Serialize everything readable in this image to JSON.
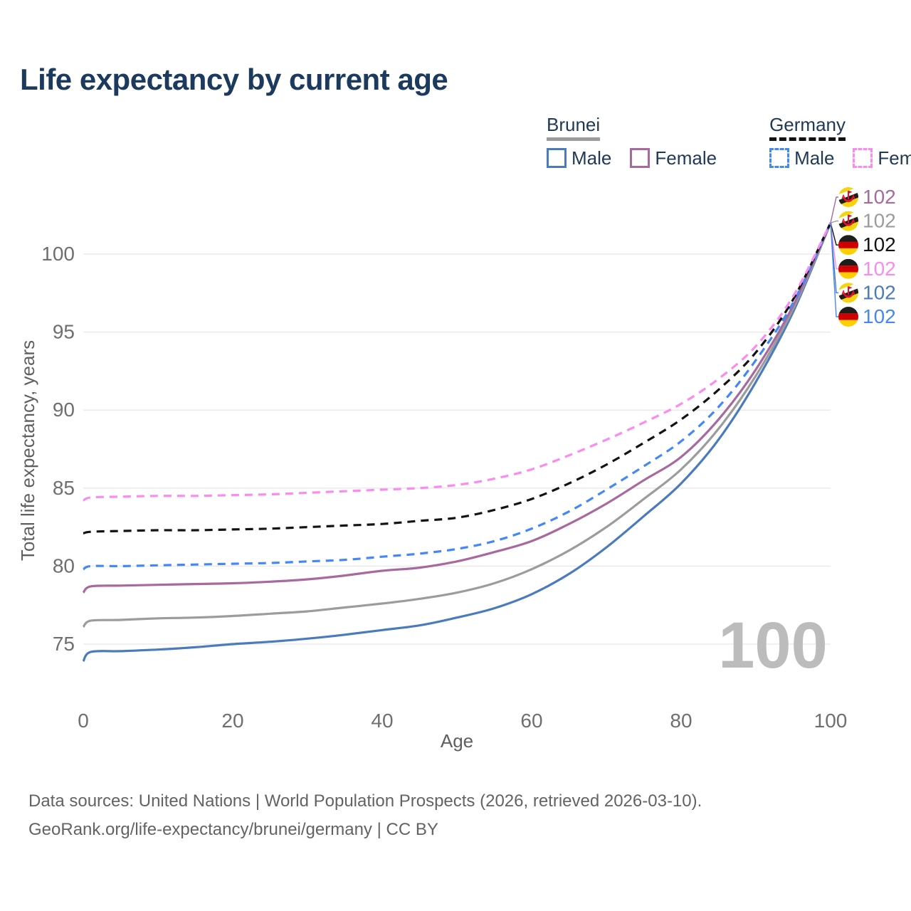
{
  "title": "Life expectancy by current age",
  "legend": {
    "groups": [
      {
        "label": "Brunei",
        "line_style": "solid",
        "line_color": "#9c9c9c",
        "items": [
          {
            "label": "Male",
            "color": "#4a7bbc",
            "dashed": false
          },
          {
            "label": "Female",
            "color": "#a7699e",
            "dashed": false
          }
        ]
      },
      {
        "label": "Germany",
        "line_style": "dashed",
        "line_color": "#131313",
        "items": [
          {
            "label": "Male",
            "color": "#4388f4",
            "dashed": true
          },
          {
            "label": "Female",
            "color": "#fb8bef",
            "dashed": true
          }
        ]
      }
    ]
  },
  "chart_data": {
    "type": "line",
    "title": "Life expectancy by current age",
    "xlabel": "Age",
    "ylabel": "Total life expectancy, years",
    "x_ticks": [
      0,
      20,
      40,
      60,
      80,
      100
    ],
    "y_ticks": [
      75,
      80,
      85,
      90,
      95,
      100
    ],
    "xlim": [
      0,
      100
    ],
    "ylim": [
      73.5,
      102.5
    ],
    "grid": "horizontal",
    "legend_position": "top-right",
    "age_watermark": "100",
    "x": [
      0,
      1,
      5,
      10,
      15,
      20,
      25,
      30,
      35,
      40,
      45,
      50,
      55,
      60,
      65,
      70,
      75,
      80,
      85,
      90,
      95,
      100
    ],
    "series": [
      {
        "name": "Brunei Female",
        "country": "Brunei",
        "sex": "Female",
        "color": "#a7699e",
        "dashed": false,
        "end_value": 102,
        "values": [
          78.3,
          78.7,
          78.75,
          78.8,
          78.85,
          78.9,
          79.0,
          79.15,
          79.4,
          79.7,
          79.9,
          80.3,
          80.9,
          81.6,
          82.7,
          84.0,
          85.5,
          87.0,
          89.4,
          92.6,
          96.7,
          102
        ]
      },
      {
        "name": "Brunei Total",
        "country": "Brunei",
        "sex": "Both",
        "color": "#9c9c9c",
        "dashed": false,
        "end_value": 102,
        "values": [
          76.1,
          76.5,
          76.55,
          76.65,
          76.7,
          76.8,
          76.95,
          77.1,
          77.35,
          77.6,
          77.9,
          78.3,
          78.9,
          79.8,
          81.0,
          82.5,
          84.3,
          86.2,
          88.8,
          92.2,
          96.5,
          102
        ]
      },
      {
        "name": "Germany Total",
        "country": "Germany",
        "sex": "Both",
        "color": "#131313",
        "dashed": true,
        "end_value": 102,
        "values": [
          82.1,
          82.2,
          82.25,
          82.3,
          82.3,
          82.35,
          82.4,
          82.5,
          82.6,
          82.7,
          82.9,
          83.1,
          83.6,
          84.3,
          85.3,
          86.5,
          87.9,
          89.4,
          91.3,
          93.7,
          97.1,
          102
        ]
      },
      {
        "name": "Germany Female",
        "country": "Germany",
        "sex": "Female",
        "color": "#fb8bef",
        "dashed": true,
        "end_value": 102,
        "values": [
          84.2,
          84.4,
          84.45,
          84.5,
          84.5,
          84.55,
          84.6,
          84.7,
          84.8,
          84.9,
          85.0,
          85.2,
          85.6,
          86.2,
          87.1,
          88.1,
          89.2,
          90.4,
          92.0,
          94.1,
          97.3,
          102
        ]
      },
      {
        "name": "Brunei Male",
        "country": "Brunei",
        "sex": "Male",
        "color": "#4a7bbc",
        "dashed": false,
        "end_value": 102,
        "values": [
          73.9,
          74.5,
          74.55,
          74.65,
          74.8,
          75.0,
          75.15,
          75.35,
          75.6,
          75.9,
          76.2,
          76.7,
          77.3,
          78.2,
          79.5,
          81.2,
          83.2,
          85.3,
          88.1,
          91.8,
          96.3,
          102
        ]
      },
      {
        "name": "Germany Male",
        "country": "Germany",
        "sex": "Male",
        "color": "#4388f4",
        "dashed": true,
        "end_value": 102,
        "values": [
          79.8,
          80.0,
          80.0,
          80.05,
          80.1,
          80.15,
          80.2,
          80.3,
          80.4,
          80.6,
          80.8,
          81.1,
          81.6,
          82.4,
          83.5,
          84.9,
          86.4,
          88.0,
          90.2,
          93.2,
          96.9,
          102
        ]
      }
    ],
    "end_labels": [
      {
        "series": "Brunei Female",
        "flag": "brunei",
        "value": "102",
        "color": "#a7699e"
      },
      {
        "series": "Brunei Total",
        "flag": "brunei",
        "value": "102",
        "color": "#9c9c9c"
      },
      {
        "series": "Germany Total",
        "flag": "germany",
        "value": "102",
        "color": "#131313"
      },
      {
        "series": "Germany Female",
        "flag": "germany",
        "value": "102",
        "color": "#fb8bef"
      },
      {
        "series": "Brunei Male",
        "flag": "brunei",
        "value": "102",
        "color": "#4a7bbc"
      },
      {
        "series": "Germany Male",
        "flag": "germany",
        "value": "102",
        "color": "#4388f4"
      }
    ]
  },
  "footer": {
    "line1": "Data sources: United Nations | World Population Prospects (2026, retrieved 2026-03-10).",
    "line2": "GeoRank.org/life-expectancy/brunei/germany | CC BY"
  }
}
